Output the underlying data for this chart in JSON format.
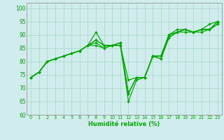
{
  "title": "",
  "xlabel": "Humidité relative (%)",
  "ylabel": "",
  "bg_color": "#d0ecec",
  "grid_color": "#aaddcc",
  "line_color": "#00aa00",
  "xlim": [
    -0.5,
    23.5
  ],
  "ylim": [
    60,
    102
  ],
  "yticks": [
    60,
    65,
    70,
    75,
    80,
    85,
    90,
    95,
    100
  ],
  "xticks": [
    0,
    1,
    2,
    3,
    4,
    5,
    6,
    7,
    8,
    9,
    10,
    11,
    12,
    13,
    14,
    15,
    16,
    17,
    18,
    19,
    20,
    21,
    22,
    23
  ],
  "line_data": [
    [
      74,
      76,
      80,
      81,
      82,
      83,
      84,
      86,
      87,
      85,
      86,
      86,
      73,
      74,
      74,
      82,
      81,
      89,
      91,
      92,
      91,
      92,
      94,
      95
    ],
    [
      74,
      76,
      80,
      81,
      82,
      83,
      84,
      86,
      88,
      86,
      86,
      87,
      68,
      74,
      74,
      82,
      82,
      90,
      91,
      92,
      91,
      92,
      92,
      94
    ],
    [
      74,
      76,
      80,
      81,
      82,
      83,
      84,
      86,
      91,
      86,
      86,
      87,
      65,
      73,
      74,
      82,
      82,
      90,
      92,
      92,
      91,
      92,
      92,
      95
    ],
    [
      74,
      76,
      80,
      81,
      82,
      83,
      84,
      86,
      88,
      86,
      86,
      87,
      68,
      74,
      74,
      82,
      82,
      90,
      91,
      92,
      91,
      92,
      92,
      95
    ],
    [
      74,
      76,
      80,
      81,
      82,
      83,
      84,
      86,
      86,
      85,
      86,
      86,
      68,
      74,
      74,
      82,
      81,
      89,
      91,
      91,
      91,
      91,
      92,
      94
    ]
  ],
  "xlabel_fontsize": 6.0,
  "xtick_fontsize": 4.8,
  "ytick_fontsize": 5.5,
  "marker_size": 1.8,
  "linewidth": 0.85
}
